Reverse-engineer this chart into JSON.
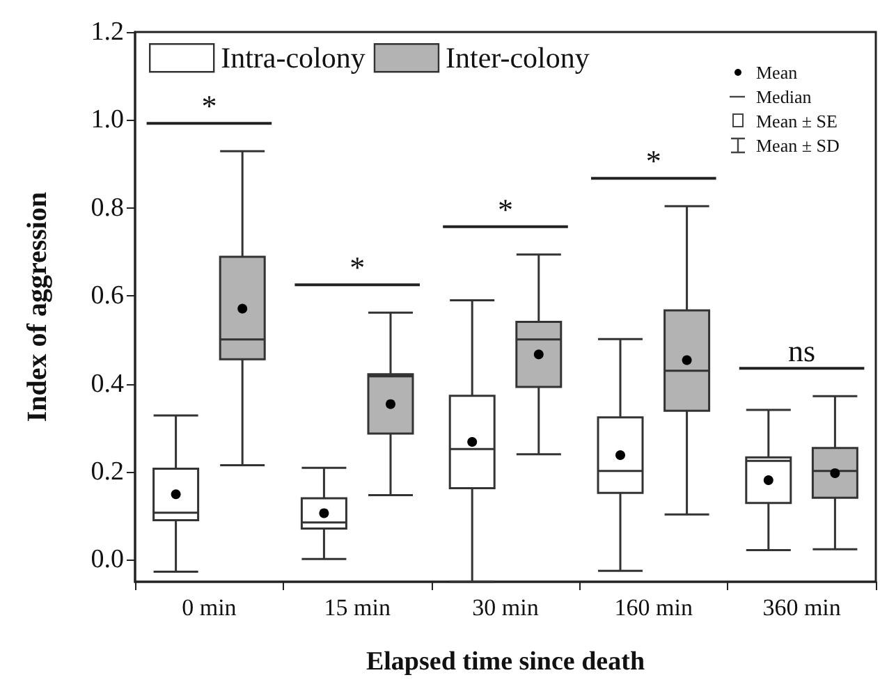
{
  "chart_data": {
    "type": "box",
    "xlabel": "Elapsed time since death",
    "ylabel": "Index of aggression",
    "categories": [
      "0 min",
      "15 min",
      "30 min",
      "160 min",
      "360 min"
    ],
    "series": [
      {
        "name": "Intra-colony",
        "color": "#ffffff",
        "boxes": [
          {
            "low": -0.027,
            "q1": 0.09,
            "median": 0.107,
            "q3": 0.207,
            "high": 0.328,
            "mean": 0.149
          },
          {
            "low": 0.002,
            "q1": 0.071,
            "median": 0.085,
            "q3": 0.14,
            "high": 0.209,
            "mean": 0.106
          },
          {
            "low": -0.05,
            "q1": 0.163,
            "median": 0.252,
            "q3": 0.373,
            "high": 0.59,
            "mean": 0.268
          },
          {
            "low": -0.025,
            "q1": 0.152,
            "median": 0.202,
            "q3": 0.324,
            "high": 0.502,
            "mean": 0.238
          },
          {
            "low": 0.022,
            "q1": 0.129,
            "median": 0.225,
            "q3": 0.233,
            "high": 0.341,
            "mean": 0.181
          }
        ]
      },
      {
        "name": "Inter-colony",
        "color": "#b3b3b3",
        "boxes": [
          {
            "low": 0.215,
            "q1": 0.456,
            "median": 0.501,
            "q3": 0.689,
            "high": 0.929,
            "mean": 0.571
          },
          {
            "low": 0.147,
            "q1": 0.287,
            "median": 0.417,
            "q3": 0.422,
            "high": 0.562,
            "mean": 0.354
          },
          {
            "low": 0.24,
            "q1": 0.393,
            "median": 0.501,
            "q3": 0.541,
            "high": 0.694,
            "mean": 0.467
          },
          {
            "low": 0.103,
            "q1": 0.339,
            "median": 0.43,
            "q3": 0.567,
            "high": 0.804,
            "mean": 0.454
          },
          {
            "low": 0.024,
            "q1": 0.141,
            "median": 0.202,
            "q3": 0.254,
            "high": 0.372,
            "mean": 0.197
          }
        ]
      }
    ],
    "ylim": [
      -0.05,
      1.2
    ],
    "yticks": [
      {
        "value": 0,
        "label": "0.0"
      },
      {
        "value": 0.2,
        "label": "0.2"
      },
      {
        "value": 0.4,
        "label": "0.4"
      },
      {
        "value": 0.6,
        "label": "0.6"
      },
      {
        "value": 0.8,
        "label": "0.8"
      },
      {
        "value": 1,
        "label": "1.0"
      },
      {
        "value": 1.2,
        "label": "1.2"
      }
    ],
    "grid": false,
    "legend": "top left",
    "annotations": [
      "*",
      "*",
      "*",
      "*",
      "ns",
      "Mean",
      "Median",
      "Mean ± SE",
      "Mean ± SD"
    ]
  }
}
